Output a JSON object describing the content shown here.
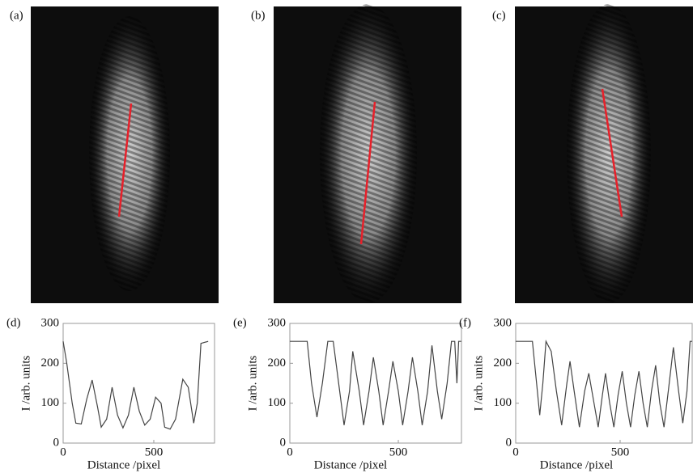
{
  "panels": [
    {
      "label": "(a)"
    },
    {
      "label": "(b)"
    },
    {
      "label": "(c)"
    }
  ],
  "chart_data": [
    {
      "type": "line",
      "label": "(d)",
      "xlabel": "Distance /pixel",
      "ylabel": "I /arb. units",
      "color": "#444444",
      "x": [
        0,
        20,
        50,
        70,
        100,
        130,
        160,
        190,
        210,
        240,
        270,
        300,
        330,
        360,
        390,
        420,
        450,
        480,
        510,
        540,
        560,
        590,
        620,
        660,
        690,
        720,
        740,
        760,
        800
      ],
      "values": [
        255,
        200,
        100,
        50,
        48,
        110,
        158,
        90,
        40,
        60,
        140,
        70,
        38,
        70,
        140,
        80,
        45,
        60,
        115,
        100,
        40,
        35,
        60,
        160,
        140,
        50,
        100,
        250,
        255
      ],
      "xlim": [
        0,
        835
      ],
      "xticks": [
        0,
        500
      ],
      "ylim": [
        0,
        300
      ],
      "yticks": [
        0,
        100,
        200,
        300
      ]
    },
    {
      "type": "line",
      "label": "(e)",
      "xlabel": "Distance /pixel",
      "ylabel": "I /arb. units",
      "color": "#444444",
      "x": [
        0,
        80,
        100,
        125,
        150,
        175,
        200,
        225,
        250,
        275,
        290,
        320,
        340,
        365,
        385,
        410,
        430,
        455,
        475,
        500,
        520,
        545,
        565,
        590,
        610,
        635,
        655,
        680,
        700,
        725,
        745,
        760,
        770,
        778,
        790
      ],
      "values": [
        255,
        255,
        150,
        65,
        150,
        255,
        255,
        150,
        45,
        130,
        230,
        130,
        45,
        130,
        215,
        130,
        45,
        130,
        205,
        130,
        45,
        130,
        215,
        130,
        45,
        130,
        245,
        130,
        60,
        150,
        255,
        255,
        150,
        255,
        255
      ],
      "xlim": [
        0,
        791
      ],
      "xticks": [
        0,
        500
      ],
      "ylim": [
        0,
        300
      ],
      "yticks": [
        0,
        100,
        200,
        300
      ]
    },
    {
      "type": "line",
      "label": "(f)",
      "xlabel": "Distance /pixel",
      "ylabel": "I /arb. units",
      "color": "#444444",
      "x": [
        0,
        80,
        100,
        115,
        130,
        145,
        170,
        195,
        220,
        245,
        260,
        280,
        305,
        330,
        350,
        375,
        395,
        415,
        430,
        450,
        470,
        490,
        510,
        530,
        550,
        570,
        590,
        610,
        630,
        650,
        670,
        690,
        710,
        735,
        755,
        780,
        800,
        820,
        835,
        845
      ],
      "values": [
        255,
        255,
        150,
        70,
        150,
        255,
        230,
        130,
        45,
        150,
        205,
        130,
        40,
        130,
        175,
        100,
        40,
        120,
        175,
        100,
        40,
        120,
        180,
        100,
        40,
        120,
        180,
        100,
        40,
        130,
        195,
        100,
        40,
        150,
        240,
        130,
        50,
        130,
        255,
        255
      ],
      "xlim": [
        0,
        845
      ],
      "xticks": [
        0,
        500
      ],
      "ylim": [
        0,
        300
      ],
      "yticks": [
        0,
        100,
        200,
        300
      ]
    }
  ]
}
